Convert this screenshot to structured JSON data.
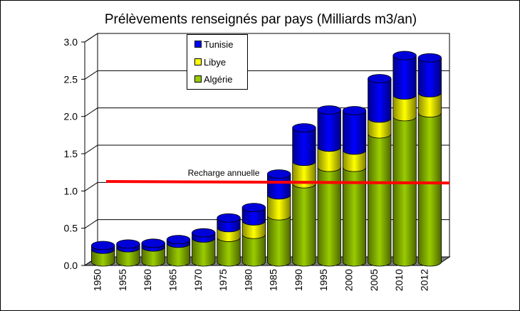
{
  "chart_data": {
    "type": "bar",
    "stacked": true,
    "title": "Prélèvements renseignés par pays (Milliards m3/an)",
    "categories": [
      "1950",
      "1955",
      "1960",
      "1965",
      "1970",
      "1975",
      "1980",
      "1985",
      "1990",
      "1995",
      "2000",
      "2005",
      "2010",
      "2012"
    ],
    "series": [
      {
        "name": "Algérie",
        "color": "#99cc00",
        "values": [
          0.17,
          0.19,
          0.2,
          0.25,
          0.32,
          0.33,
          0.37,
          0.62,
          1.05,
          1.27,
          1.27,
          1.72,
          1.95,
          2.0
        ]
      },
      {
        "name": "Libye",
        "color": "#ffff00",
        "values": [
          0.0,
          0.0,
          0.0,
          0.0,
          0.0,
          0.13,
          0.18,
          0.28,
          0.3,
          0.27,
          0.23,
          0.21,
          0.29,
          0.27
        ]
      },
      {
        "name": "Tunisie",
        "color": "#0000ff",
        "values": [
          0.05,
          0.05,
          0.05,
          0.05,
          0.07,
          0.13,
          0.18,
          0.28,
          0.45,
          0.5,
          0.53,
          0.53,
          0.53,
          0.47
        ]
      }
    ],
    "ylim": [
      0,
      3
    ],
    "yticks": [
      "0.0",
      "0.5",
      "1.0",
      "1.5",
      "2.0",
      "2.5",
      "3.0"
    ],
    "grid": true,
    "legend": {
      "placement": "top-left",
      "order": [
        "Tunisie",
        "Libye",
        "Algérie"
      ]
    },
    "reference_line": {
      "label": "Recharge annuelle",
      "y_start": 1.07,
      "y_end": 1.05,
      "color": "#ff0000"
    }
  }
}
